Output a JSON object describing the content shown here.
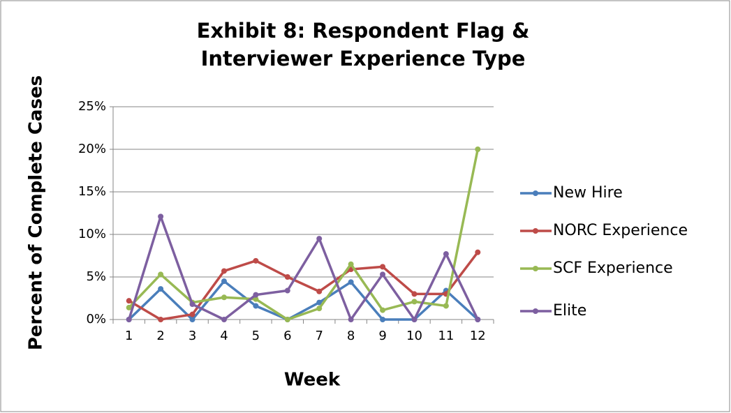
{
  "chart_data": {
    "type": "line",
    "title": "Exhibit 8: Respondent Flag & Interviewer Experience Type",
    "x_label": "Week",
    "y_label": "Percent of Complete Cases",
    "categories": [
      "1",
      "2",
      "3",
      "4",
      "5",
      "6",
      "7",
      "8",
      "9",
      "10",
      "11",
      "12"
    ],
    "series": [
      {
        "name": "New Hire",
        "color": "#4a7ebb",
        "values": [
          0,
          3.6,
          0,
          4.5,
          1.6,
          0,
          2.0,
          4.4,
          0,
          0,
          3.4,
          0
        ]
      },
      {
        "name": "NORC Experience",
        "color": "#be4b48",
        "values": [
          2.2,
          0,
          0.6,
          5.7,
          6.9,
          5.0,
          3.3,
          5.9,
          6.2,
          3.0,
          3.0,
          7.9
        ]
      },
      {
        "name": "SCF Experience",
        "color": "#98b954",
        "values": [
          1.4,
          5.3,
          2.0,
          2.6,
          2.4,
          0,
          1.3,
          6.5,
          1.1,
          2.1,
          1.6,
          20
        ]
      },
      {
        "name": "Elite",
        "color": "#7d5fa0",
        "values": [
          0,
          12.1,
          1.8,
          0,
          2.9,
          3.4,
          9.5,
          0,
          5.3,
          0,
          7.7,
          0
        ]
      }
    ],
    "ylim": [
      0,
      25
    ],
    "yticks": [
      {
        "value": 0,
        "label": "0%"
      },
      {
        "value": 5,
        "label": "5%"
      },
      {
        "value": 10,
        "label": "10%"
      },
      {
        "value": 15,
        "label": "15%"
      },
      {
        "value": 20,
        "label": "20%"
      },
      {
        "value": 25,
        "label": "25%"
      }
    ],
    "grid": true,
    "legend": "right"
  }
}
